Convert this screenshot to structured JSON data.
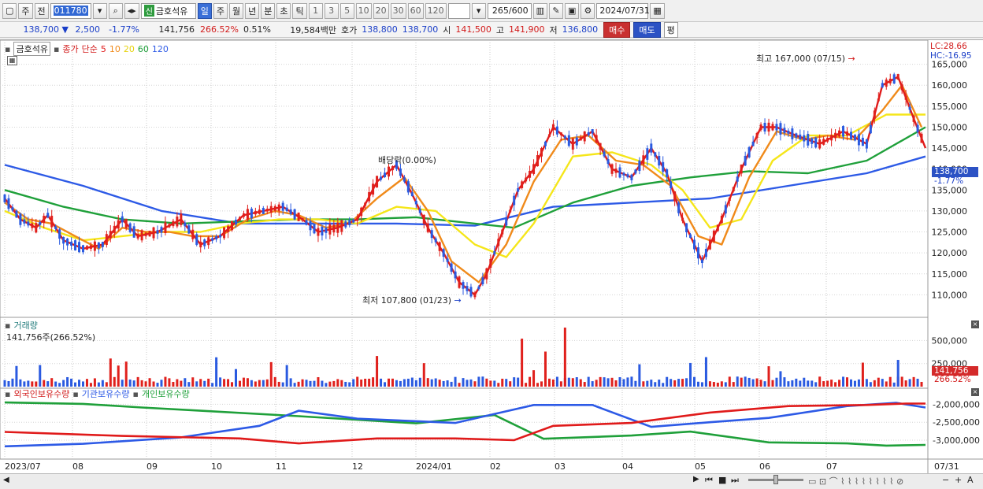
{
  "toolbar": {
    "period_label": "주",
    "prev_label": "전",
    "code": "011780",
    "stock_name": "금호석유",
    "new_badge": "신",
    "tabs": [
      "일",
      "주",
      "월",
      "년",
      "분",
      "초",
      "틱"
    ],
    "numbers": [
      "1",
      "3",
      "5",
      "10",
      "20",
      "30",
      "60",
      "120"
    ],
    "count": "265",
    "total": "/600",
    "date": "2024/07/31"
  },
  "quote": {
    "price": "138,700",
    "change": "2,500",
    "change_pct": "-1.77%",
    "volume": "141,756",
    "volume_pct": "266.52%",
    "turnover": "0.51%",
    "amount": "19,584백만",
    "ask_label": "호가",
    "ask": "138,800",
    "bid": "138,700",
    "open_label": "시",
    "open": "141,500",
    "high_label": "고",
    "high": "141,900",
    "low_label": "저",
    "low": "136,800",
    "buy_label": "매수",
    "sell_label": "매도",
    "eval_label": "평"
  },
  "legend": {
    "name": "금호석유",
    "close": "종가",
    "simple": "단순",
    "ma5": "5",
    "ma10": "10",
    "ma20": "20",
    "ma60": "60",
    "ma120": "120",
    "lc": "LC:28.66",
    "hc": "HC:-16.95"
  },
  "annotations": {
    "high": "최고 167,000 (07/15)",
    "low": "최저 107,800 (01/23)",
    "dividend": "배당락(0.00%)"
  },
  "volume_panel": {
    "title": "거래량",
    "value": "141,756주(266.52%)",
    "badge": "141,756",
    "badge_pct": "266.52%"
  },
  "holdings_panel": {
    "foreign": "외국인보유수량",
    "institution": "기관보유수량",
    "individual": "개인보유수량"
  },
  "price_badge": {
    "price": "138,700",
    "pct": "-1.77%"
  },
  "colors": {
    "up": "#e0201c",
    "down": "#2a5ae0",
    "ma5": "#e01a1a",
    "ma10": "#f08a1a",
    "ma20": "#f5e61a",
    "ma60": "#1fa03a",
    "ma120": "#2d5ae6"
  },
  "chart_data": {
    "type": "candlestick",
    "price_axis": [
      "165,000",
      "160,000",
      "155,000",
      "150,000",
      "145,000",
      "140,000",
      "135,000",
      "130,000",
      "125,000",
      "120,000",
      "115,000",
      "110,000"
    ],
    "price_ticks": [
      165000,
      160000,
      155000,
      150000,
      145000,
      140000,
      135000,
      130000,
      125000,
      120000,
      115000,
      110000
    ],
    "volume_axis": [
      "500,000",
      "250,000"
    ],
    "holdings_axis": [
      "-2,000,000",
      "-2,500,000",
      "-3,000,000"
    ],
    "x_labels": [
      "2023/07",
      "08",
      "09",
      "10",
      "11",
      "12",
      "2024/01",
      "02",
      "03",
      "04",
      "05",
      "06",
      "07",
      "07/31"
    ],
    "x_dates": [
      "2023-07-03",
      "2023-08-01",
      "2023-09-01",
      "2023-10-04",
      "2023-11-01",
      "2023-12-01",
      "2024-01-02",
      "2024-02-01",
      "2024-03-04",
      "2024-04-01",
      "2024-05-02",
      "2024-06-03",
      "2024-07-01",
      "2024-07-31"
    ],
    "ylim": [
      105000,
      170000
    ],
    "ma_series": [
      {
        "name": "5",
        "values": [
          [
            0,
            133000
          ],
          [
            8,
            128000
          ],
          [
            16,
            126000
          ],
          [
            22,
            129000
          ],
          [
            30,
            123000
          ],
          [
            40,
            121000
          ],
          [
            50,
            122000
          ],
          [
            60,
            128000
          ],
          [
            68,
            124000
          ],
          [
            78,
            125000
          ],
          [
            90,
            128000
          ],
          [
            100,
            122000
          ],
          [
            110,
            124000
          ],
          [
            122,
            129000
          ],
          [
            132,
            130000
          ],
          [
            142,
            131000
          ],
          [
            152,
            128000
          ],
          [
            160,
            125000
          ],
          [
            170,
            126000
          ],
          [
            180,
            128000
          ],
          [
            190,
            137000
          ],
          [
            200,
            141000
          ],
          [
            208,
            134000
          ],
          [
            216,
            126000
          ],
          [
            224,
            120000
          ],
          [
            232,
            113000
          ],
          [
            240,
            110000
          ],
          [
            246,
            115000
          ],
          [
            254,
            125000
          ],
          [
            262,
            135000
          ],
          [
            270,
            140000
          ],
          [
            280,
            150000
          ],
          [
            290,
            146000
          ],
          [
            300,
            149000
          ],
          [
            310,
            140000
          ],
          [
            320,
            138000
          ],
          [
            330,
            145000
          ],
          [
            338,
            139000
          ],
          [
            346,
            128000
          ],
          [
            356,
            118000
          ],
          [
            366,
            128000
          ],
          [
            376,
            140000
          ],
          [
            386,
            150000
          ],
          [
            394,
            150000
          ],
          [
            404,
            148000
          ],
          [
            416,
            146000
          ],
          [
            428,
            149000
          ],
          [
            440,
            146000
          ],
          [
            448,
            160000
          ],
          [
            456,
            162000
          ],
          [
            464,
            152000
          ],
          [
            470,
            145000
          ]
        ]
      },
      {
        "name": "10",
        "values": [
          [
            0,
            132000
          ],
          [
            12,
            128000
          ],
          [
            24,
            127000
          ],
          [
            36,
            124000
          ],
          [
            48,
            121000
          ],
          [
            60,
            126000
          ],
          [
            72,
            125000
          ],
          [
            84,
            125000
          ],
          [
            96,
            124000
          ],
          [
            110,
            124000
          ],
          [
            124,
            128000
          ],
          [
            138,
            130000
          ],
          [
            150,
            129000
          ],
          [
            164,
            126000
          ],
          [
            176,
            127000
          ],
          [
            190,
            133000
          ],
          [
            204,
            138000
          ],
          [
            216,
            130000
          ],
          [
            228,
            118000
          ],
          [
            242,
            113000
          ],
          [
            256,
            122000
          ],
          [
            270,
            137000
          ],
          [
            284,
            147000
          ],
          [
            298,
            148000
          ],
          [
            312,
            142000
          ],
          [
            326,
            141000
          ],
          [
            340,
            136000
          ],
          [
            354,
            124000
          ],
          [
            366,
            122000
          ],
          [
            380,
            138000
          ],
          [
            394,
            149000
          ],
          [
            408,
            147000
          ],
          [
            420,
            148000
          ],
          [
            434,
            147000
          ],
          [
            448,
            154000
          ],
          [
            458,
            160000
          ],
          [
            468,
            150000
          ]
        ]
      },
      {
        "name": "20",
        "values": [
          [
            0,
            130000
          ],
          [
            20,
            126000
          ],
          [
            40,
            123000
          ],
          [
            60,
            124000
          ],
          [
            80,
            125000
          ],
          [
            100,
            125000
          ],
          [
            120,
            127000
          ],
          [
            140,
            128000
          ],
          [
            160,
            128000
          ],
          [
            180,
            127000
          ],
          [
            200,
            131000
          ],
          [
            220,
            130000
          ],
          [
            240,
            122000
          ],
          [
            256,
            119000
          ],
          [
            270,
            127000
          ],
          [
            290,
            143000
          ],
          [
            310,
            144000
          ],
          [
            330,
            141000
          ],
          [
            346,
            135000
          ],
          [
            360,
            126000
          ],
          [
            376,
            128000
          ],
          [
            392,
            142000
          ],
          [
            410,
            148000
          ],
          [
            430,
            148000
          ],
          [
            450,
            153000
          ],
          [
            470,
            153000
          ]
        ]
      },
      {
        "name": "60",
        "values": [
          [
            0,
            135000
          ],
          [
            30,
            131000
          ],
          [
            60,
            128000
          ],
          [
            90,
            127000
          ],
          [
            120,
            127500
          ],
          [
            150,
            128000
          ],
          [
            180,
            128000
          ],
          [
            210,
            128500
          ],
          [
            240,
            127000
          ],
          [
            260,
            126000
          ],
          [
            290,
            132000
          ],
          [
            320,
            136000
          ],
          [
            350,
            138000
          ],
          [
            380,
            139500
          ],
          [
            410,
            139000
          ],
          [
            440,
            142000
          ],
          [
            470,
            150000
          ]
        ]
      },
      {
        "name": "120",
        "values": [
          [
            0,
            141000
          ],
          [
            40,
            136000
          ],
          [
            80,
            130000
          ],
          [
            120,
            127000
          ],
          [
            160,
            127000
          ],
          [
            200,
            127000
          ],
          [
            240,
            126500
          ],
          [
            280,
            131000
          ],
          [
            320,
            132000
          ],
          [
            360,
            133000
          ],
          [
            400,
            136000
          ],
          [
            440,
            139000
          ],
          [
            470,
            143000
          ]
        ]
      }
    ]
  }
}
